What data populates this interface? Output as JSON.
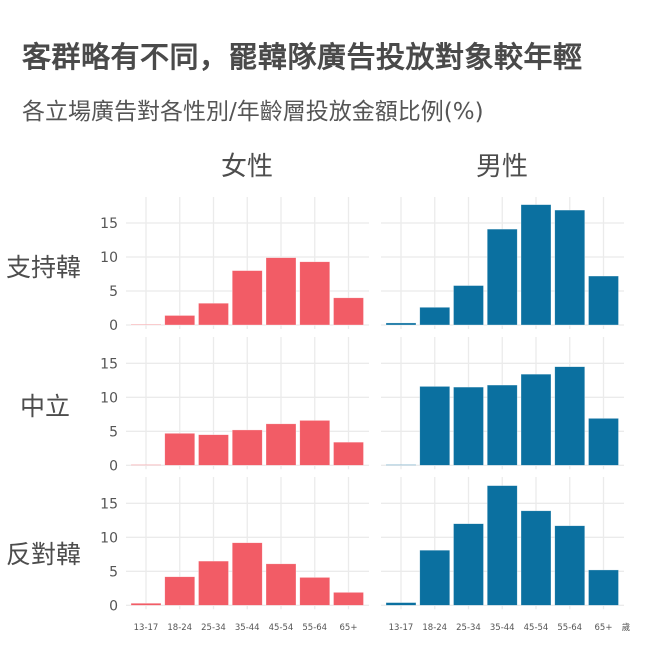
{
  "title": "客群略有不同，罷韓隊廣告投放對象較年輕",
  "subtitle": "各立場廣告對各性別/年齡層投放金額比例(%)",
  "columns": [
    {
      "label": "女性"
    },
    {
      "label": "男性"
    }
  ],
  "rows": [
    {
      "label": "支持韓"
    },
    {
      "label": "中立"
    },
    {
      "label": "反對韓"
    }
  ],
  "x_unit_label": "歲",
  "colors": {
    "female": "#F25C66",
    "male": "#0B70A0",
    "grid": "#EBEBEB"
  },
  "chart_data": {
    "type": "bar",
    "title": "客群略有不同，罷韓隊廣告投放對象較年輕",
    "subtitle": "各立場廣告對各性別/年齡層投放金額比例(%)",
    "xlabel": "歲",
    "ylabel": "",
    "ylim": [
      0,
      18.5
    ],
    "yticks": [
      0,
      5,
      10,
      15
    ],
    "grid": true,
    "categories": [
      "13-17",
      "18-24",
      "25-34",
      "35-44",
      "45-54",
      "55-64",
      "65+"
    ],
    "facets": {
      "rows": [
        "支持韓",
        "中立",
        "反對韓"
      ],
      "cols": [
        "女性",
        "男性"
      ]
    },
    "series": [
      {
        "name": "支持韓-女性",
        "values": [
          0.0,
          1.4,
          3.2,
          8.0,
          9.9,
          9.3,
          4.0
        ]
      },
      {
        "name": "支持韓-男性",
        "values": [
          0.3,
          2.6,
          5.8,
          14.1,
          17.7,
          16.9,
          7.2
        ]
      },
      {
        "name": "中立-女性",
        "values": [
          0.1,
          4.7,
          4.5,
          5.2,
          6.1,
          6.6,
          3.4
        ]
      },
      {
        "name": "中立-男性",
        "values": [
          0.1,
          11.6,
          11.5,
          11.8,
          13.4,
          14.5,
          6.9
        ]
      },
      {
        "name": "反對韓-女性",
        "values": [
          0.3,
          4.2,
          6.5,
          9.2,
          6.1,
          4.1,
          1.9
        ]
      },
      {
        "name": "反對韓-男性",
        "values": [
          0.4,
          8.1,
          12.0,
          17.6,
          13.9,
          11.7,
          5.2
        ]
      }
    ]
  }
}
